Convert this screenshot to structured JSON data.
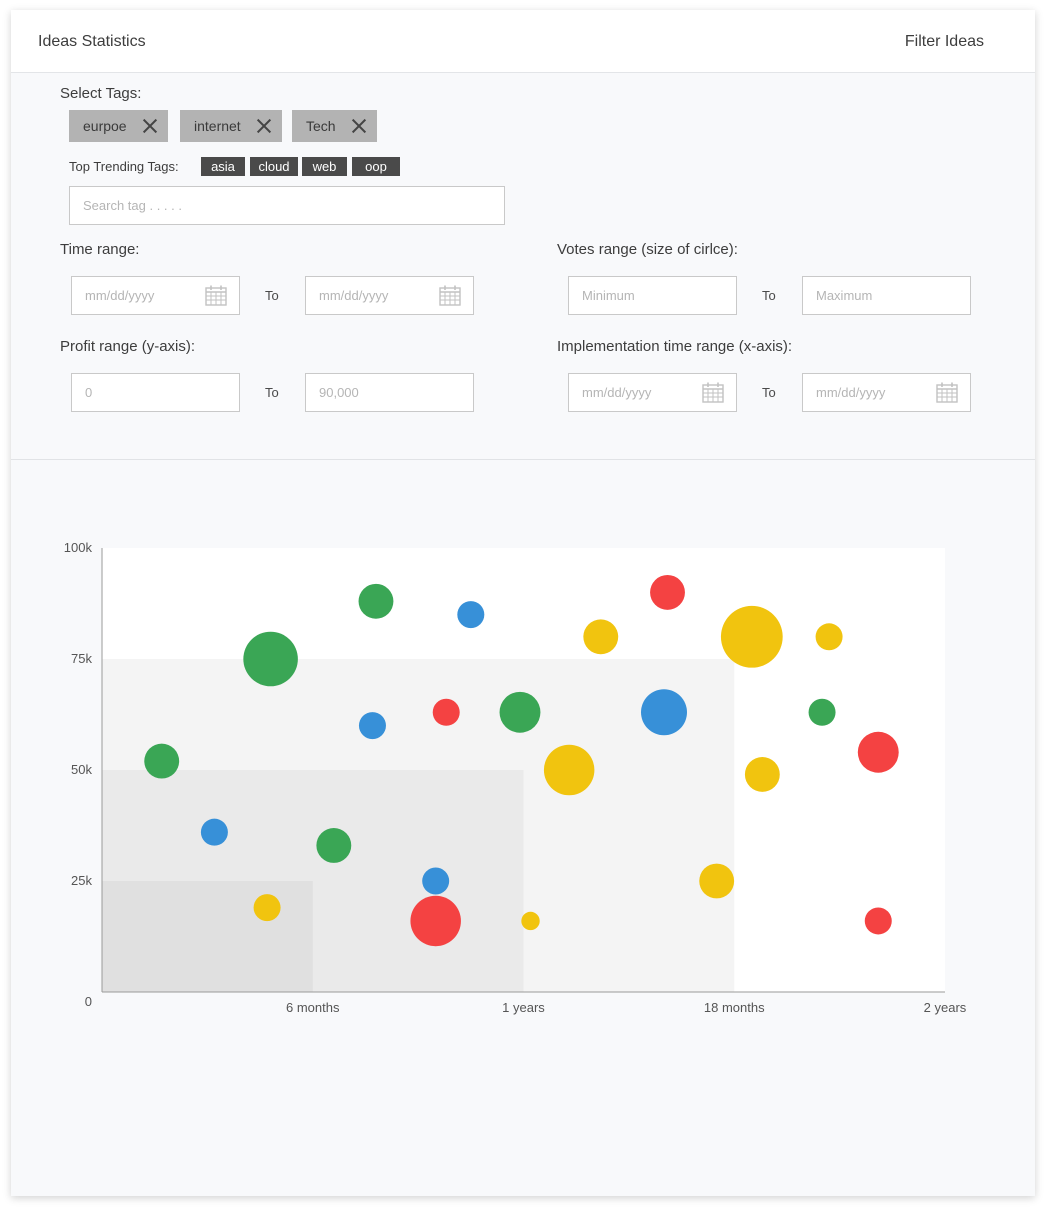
{
  "header": {
    "title": "Ideas Statistics",
    "filter_label": "Filter Ideas"
  },
  "filters": {
    "select_tags_label": "Select Tags:",
    "selected_tags": [
      "eurpoe",
      "internet",
      "Tech"
    ],
    "trending_label": "Top Trending Tags:",
    "trending_tags": [
      "asia",
      "cloud",
      "web",
      "oop"
    ],
    "search_placeholder": "Search tag . . . . .",
    "time_range": {
      "label": "Time range:",
      "from_placeholder": "mm/dd/yyyy",
      "to_label": "To",
      "to_placeholder": "mm/dd/yyyy"
    },
    "votes_range": {
      "label": "Votes range (size of cirlce):",
      "from_placeholder": "Minimum",
      "to_label": "To",
      "to_placeholder": "Maximum"
    },
    "profit_range": {
      "label": "Profit range (y-axis):",
      "from_placeholder": "0",
      "to_label": "To",
      "to_placeholder": "90,000"
    },
    "impl_range": {
      "label": "Implementation time range (x-axis):",
      "from_placeholder": "mm/dd/yyyy",
      "to_label": "To",
      "to_placeholder": "mm/dd/yyyy"
    }
  },
  "colors": {
    "green": "#3aa655",
    "blue": "#3790d8",
    "red": "#f44242",
    "yellow": "#f1c40f"
  },
  "chart_data": {
    "type": "scatter",
    "title": "",
    "xlabel": "",
    "ylabel": "",
    "xlim": [
      0,
      24
    ],
    "ylim": [
      0,
      100000
    ],
    "x_ticks": [
      {
        "value": 6,
        "label": "6 months"
      },
      {
        "value": 12,
        "label": "1 years"
      },
      {
        "value": 18,
        "label": "18 months"
      },
      {
        "value": 24,
        "label": "2 years"
      }
    ],
    "y_ticks": [
      {
        "value": 0,
        "label": "0"
      },
      {
        "value": 25000,
        "label": "25k"
      },
      {
        "value": 50000,
        "label": "50k"
      },
      {
        "value": 75000,
        "label": "75k"
      },
      {
        "value": 100000,
        "label": "100k"
      }
    ],
    "regions": [
      {
        "x": [
          0,
          18
        ],
        "y": [
          0,
          75000
        ],
        "color": "#f4f4f4"
      },
      {
        "x": [
          0,
          12
        ],
        "y": [
          0,
          50000
        ],
        "color": "#eaeaea"
      },
      {
        "x": [
          0,
          6
        ],
        "y": [
          0,
          25000
        ],
        "color": "#e0e0e0"
      }
    ],
    "points": [
      {
        "x": 1.7,
        "y": 52000,
        "votes": 2,
        "color": "green"
      },
      {
        "x": 4.8,
        "y": 75000,
        "votes": 6,
        "color": "green"
      },
      {
        "x": 7.8,
        "y": 88000,
        "votes": 2,
        "color": "green"
      },
      {
        "x": 6.6,
        "y": 33000,
        "votes": 2,
        "color": "green"
      },
      {
        "x": 11.9,
        "y": 63000,
        "votes": 3,
        "color": "green"
      },
      {
        "x": 20.5,
        "y": 63000,
        "votes": 1,
        "color": "green"
      },
      {
        "x": 3.2,
        "y": 36000,
        "votes": 1,
        "color": "blue"
      },
      {
        "x": 7.7,
        "y": 60000,
        "votes": 1,
        "color": "blue"
      },
      {
        "x": 10.5,
        "y": 85000,
        "votes": 1,
        "color": "blue"
      },
      {
        "x": 9.5,
        "y": 25000,
        "votes": 1,
        "color": "blue"
      },
      {
        "x": 16.0,
        "y": 63000,
        "votes": 4,
        "color": "blue"
      },
      {
        "x": 9.5,
        "y": 16000,
        "votes": 5,
        "color": "red"
      },
      {
        "x": 9.8,
        "y": 63000,
        "votes": 1,
        "color": "red"
      },
      {
        "x": 16.1,
        "y": 90000,
        "votes": 2,
        "color": "red"
      },
      {
        "x": 22.1,
        "y": 54000,
        "votes": 3,
        "color": "red"
      },
      {
        "x": 22.1,
        "y": 16000,
        "votes": 1,
        "color": "red"
      },
      {
        "x": 4.7,
        "y": 19000,
        "votes": 1,
        "color": "yellow"
      },
      {
        "x": 12.2,
        "y": 16000,
        "votes": 0.3,
        "color": "yellow"
      },
      {
        "x": 13.3,
        "y": 50000,
        "votes": 5,
        "color": "yellow"
      },
      {
        "x": 14.2,
        "y": 80000,
        "votes": 2,
        "color": "yellow"
      },
      {
        "x": 17.5,
        "y": 25000,
        "votes": 2,
        "color": "yellow"
      },
      {
        "x": 18.5,
        "y": 80000,
        "votes": 8,
        "color": "yellow"
      },
      {
        "x": 18.8,
        "y": 49000,
        "votes": 2,
        "color": "yellow"
      },
      {
        "x": 20.7,
        "y": 80000,
        "votes": 1,
        "color": "yellow"
      }
    ]
  }
}
